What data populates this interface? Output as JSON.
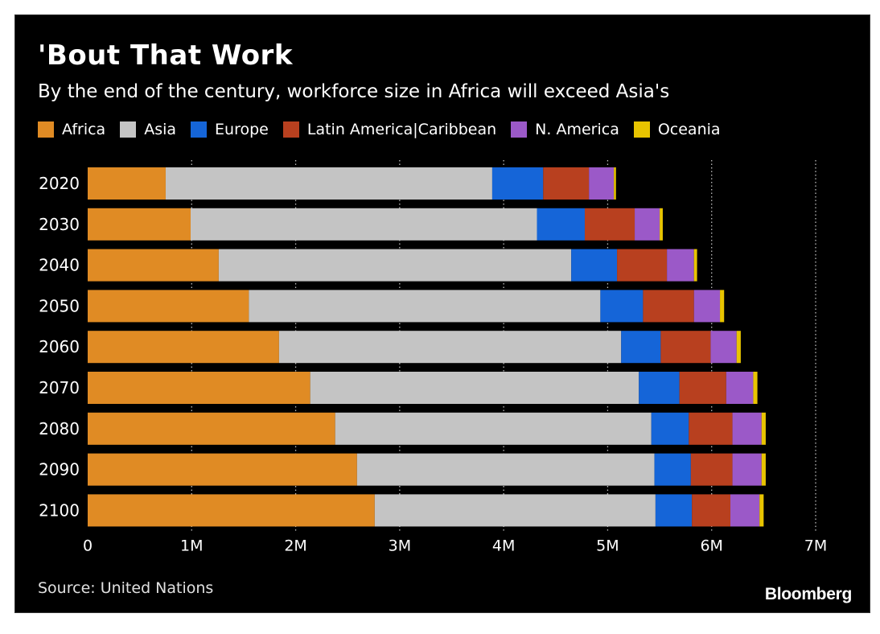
{
  "title": "'Bout That Work",
  "subtitle": "By the end of the century, workforce size in Africa will exceed Asia's",
  "source": "Source: United Nations",
  "brand": "Bloomberg",
  "chart_data": {
    "type": "bar",
    "orientation": "horizontal",
    "stacked": true,
    "title": "'Bout That Work",
    "subtitle": "By the end of the century, workforce size in Africa will exceed Asia's",
    "xlabel": "",
    "ylabel": "",
    "xlim": [
      0,
      7000000
    ],
    "xticks": [
      0,
      1000000,
      2000000,
      3000000,
      4000000,
      5000000,
      6000000,
      7000000
    ],
    "xtick_labels": [
      "0",
      "1M",
      "2M",
      "3M",
      "4M",
      "5M",
      "6M",
      "7M"
    ],
    "grid": "vertical dotted",
    "legend_position": "top",
    "categories": [
      "2020",
      "2030",
      "2040",
      "2050",
      "2060",
      "2070",
      "2080",
      "2090",
      "2100"
    ],
    "series": [
      {
        "name": "Africa",
        "color": "#e08b24",
        "values": [
          750000,
          990000,
          1260000,
          1550000,
          1840000,
          2140000,
          2380000,
          2590000,
          2760000
        ]
      },
      {
        "name": "Asia",
        "color": "#c4c4c4",
        "values": [
          3140000,
          3330000,
          3390000,
          3380000,
          3290000,
          3160000,
          3040000,
          2860000,
          2700000
        ]
      },
      {
        "name": "Europe",
        "color": "#1565d8",
        "values": [
          490000,
          460000,
          440000,
          410000,
          380000,
          390000,
          360000,
          350000,
          350000
        ]
      },
      {
        "name": "Latin America|Caribbean",
        "color": "#b8401f",
        "values": [
          440000,
          480000,
          480000,
          490000,
          480000,
          450000,
          420000,
          400000,
          370000
        ]
      },
      {
        "name": "N. America",
        "color": "#9b59c8",
        "values": [
          240000,
          240000,
          260000,
          250000,
          250000,
          260000,
          280000,
          280000,
          280000
        ]
      },
      {
        "name": "Oceania",
        "color": "#e8c400",
        "values": [
          20000,
          30000,
          30000,
          40000,
          40000,
          40000,
          40000,
          40000,
          40000
        ]
      }
    ]
  }
}
